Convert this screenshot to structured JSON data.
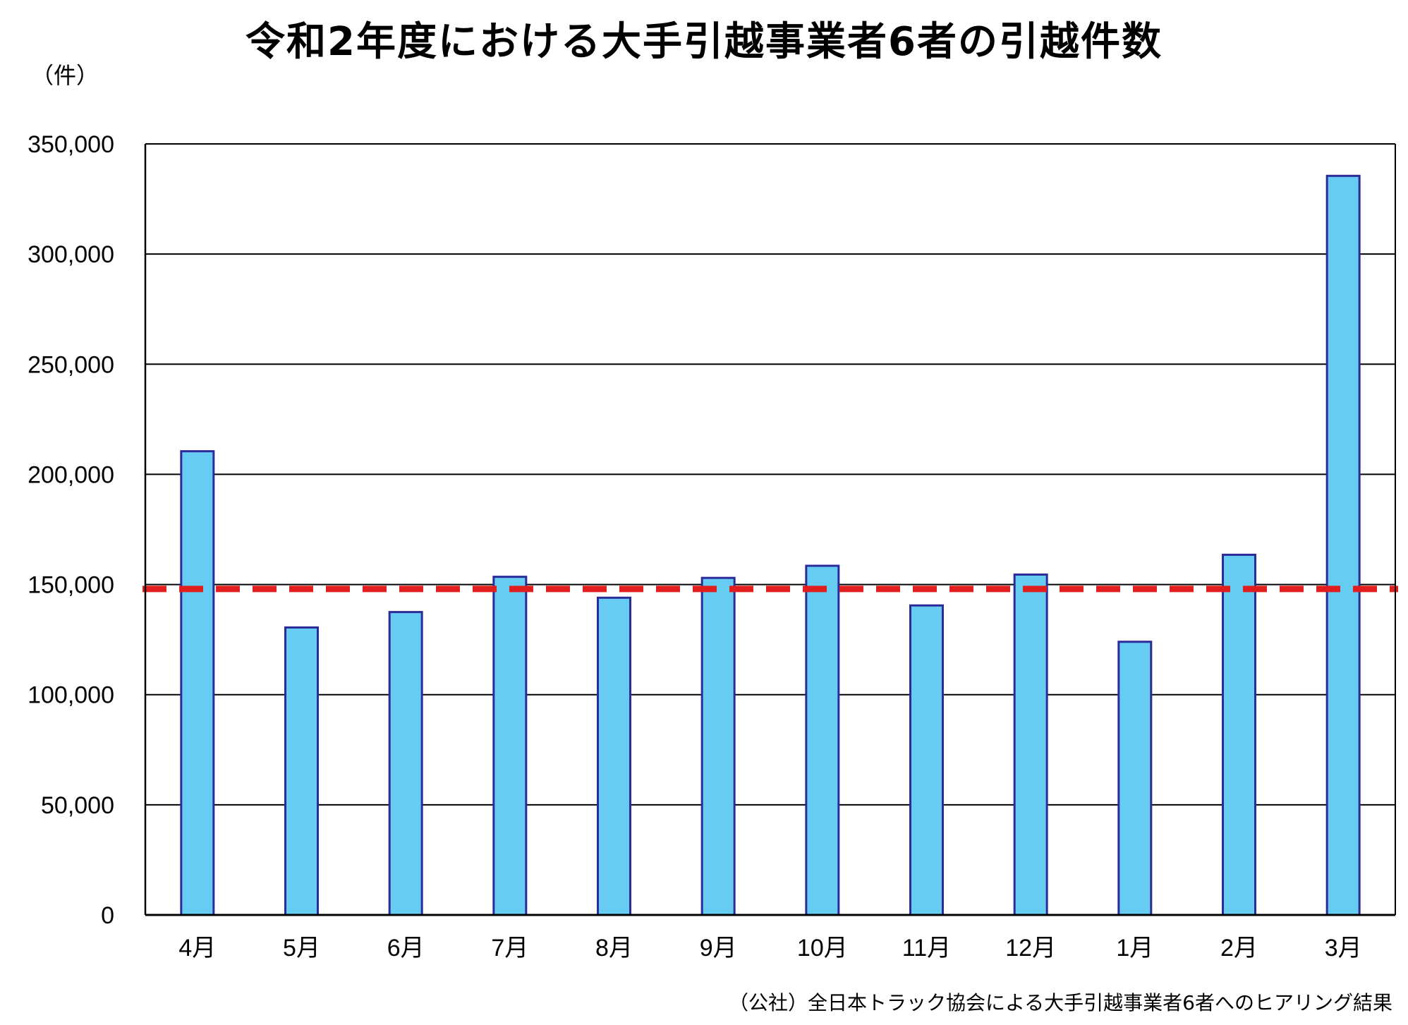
{
  "header": {
    "title": "令和2年度における大手引越事業者6者の引越件数",
    "unit_label": "（件）"
  },
  "footer": {
    "source": "（公社）全日本トラック協会による大手引越事業者6者へのヒアリング結果"
  },
  "colors": {
    "bar_fill": "#66CCF2",
    "bar_stroke": "#2B2B99",
    "reference_line": "#E01E1E",
    "grid": "#000000"
  },
  "chart_data": {
    "type": "bar",
    "title": "令和2年度における大手引越事業者6者の引越件数",
    "xlabel": "",
    "ylabel": "（件）",
    "categories": [
      "4月",
      "5月",
      "6月",
      "7月",
      "8月",
      "9月",
      "10月",
      "11月",
      "12月",
      "1月",
      "2月",
      "3月"
    ],
    "values": [
      210500,
      130500,
      137500,
      153500,
      144000,
      153000,
      158500,
      140500,
      154500,
      124000,
      163500,
      335500
    ],
    "ylim": [
      0,
      350000
    ],
    "yticks": [
      0,
      50000,
      100000,
      150000,
      200000,
      250000,
      300000,
      350000
    ],
    "ytick_labels": [
      "0",
      "50,000",
      "100,000",
      "150,000",
      "200,000",
      "250,000",
      "300,000",
      "350,000"
    ],
    "reference_line": {
      "value": 148000,
      "style": "dashed"
    },
    "grid": true,
    "legend": "none"
  }
}
